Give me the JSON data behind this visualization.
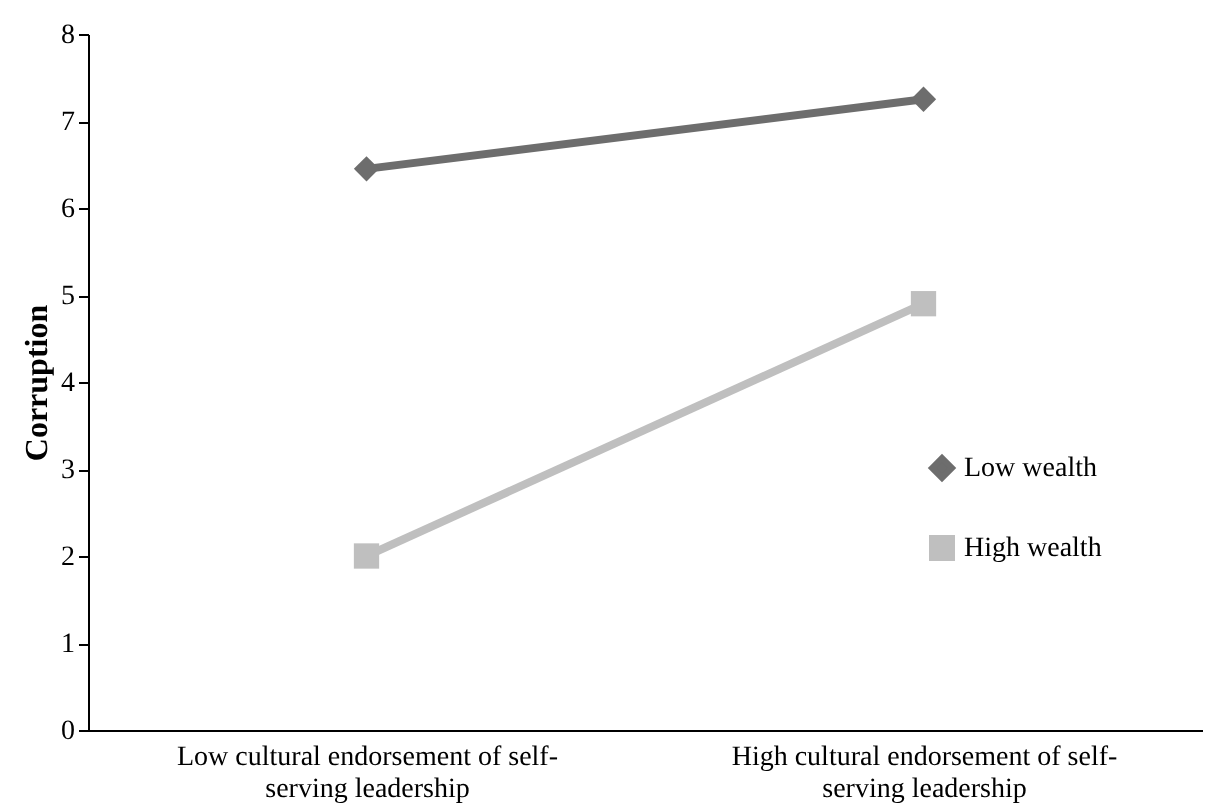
{
  "chart_data": {
    "type": "line",
    "ylabel": "Corruption",
    "categories": [
      "Low cultural endorsement of self-serving leadership",
      "High cultural endorsement of self-serving leadership"
    ],
    "series": [
      {
        "name": "Low wealth",
        "color": "#6d6d6d",
        "marker": "diamond",
        "values": [
          6.45,
          7.25
        ]
      },
      {
        "name": "High wealth",
        "color": "#bfbfbf",
        "marker": "square",
        "values": [
          2.0,
          4.9
        ]
      }
    ],
    "ylim": [
      0,
      8
    ],
    "yticks": [
      0,
      1,
      2,
      3,
      4,
      5,
      6,
      7,
      8
    ],
    "grid": false,
    "legend": "right",
    "line_style": "solid"
  }
}
